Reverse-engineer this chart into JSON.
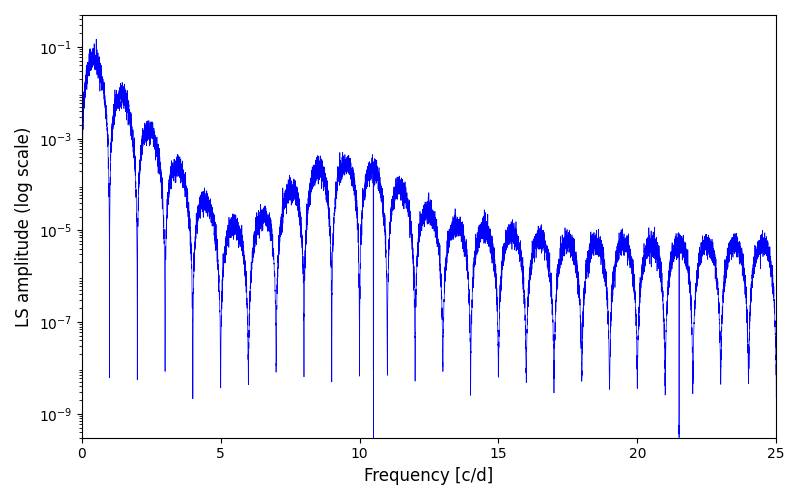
{
  "title": "",
  "xlabel": "Frequency [c/d]",
  "ylabel": "LS amplitude (log scale)",
  "xlim": [
    0,
    25
  ],
  "ylim_log": [
    3e-10,
    0.5
  ],
  "yticks": [
    1e-09,
    1e-07,
    1e-05,
    0.001,
    0.1
  ],
  "xticks": [
    0,
    5,
    10,
    15,
    20,
    25
  ],
  "line_color": "#0000ff",
  "linewidth": 0.5,
  "figsize": [
    8.0,
    5.0
  ],
  "dpi": 100,
  "seed": 42,
  "n_points": 10000,
  "freq_max": 25.0,
  "background_color": "#ffffff"
}
